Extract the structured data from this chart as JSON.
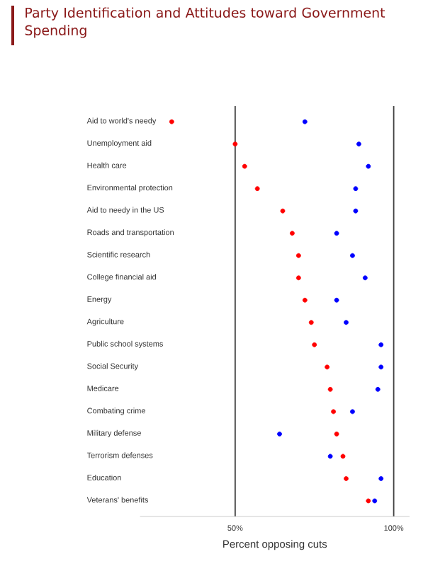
{
  "chart_data": {
    "type": "scatter",
    "orientation": "horizontal",
    "title": "Party Identification and Attitudes toward Government Spending",
    "xlabel": "Percent opposing cuts",
    "categories": [
      "Aid to world's needy",
      "Unemployment aid",
      "Health care",
      "Environmental protection",
      "Aid to needy in the US",
      "Roads and transportation",
      "Scientific research",
      "College financial aid",
      "Energy",
      "Agriculture",
      "Public school systems",
      "Social Security",
      "Medicare",
      "Combating crime",
      "Military defense",
      "Terrorism defenses",
      "Education",
      "Veterans' benefits"
    ],
    "series": [
      {
        "color": "#ff0000",
        "values": [
          30,
          50,
          53,
          57,
          65,
          68,
          70,
          70,
          72,
          74,
          75,
          79,
          80,
          81,
          82,
          84,
          85,
          92
        ]
      },
      {
        "color": "#0000ff",
        "values": [
          72,
          89,
          92,
          88,
          88,
          82,
          87,
          91,
          82,
          85,
          96,
          96,
          95,
          87,
          64,
          80,
          96,
          94
        ]
      }
    ],
    "xticks": [
      {
        "value": 50,
        "label": "50%"
      },
      {
        "value": 100,
        "label": "100%"
      }
    ],
    "xlim": [
      20,
      105
    ],
    "grid": "x"
  }
}
